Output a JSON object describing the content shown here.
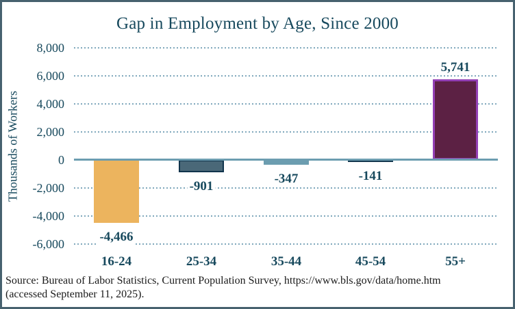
{
  "title": "Gap in Employment by Age, Since 2000",
  "source": {
    "lines": [
      "Source: Bureau of Labor Statistics, Current Population Survey, https://www.bls.gov/data/home.htm",
      "(accessed September 11, 2025)."
    ]
  },
  "chart_data": {
    "type": "bar",
    "title": "Gap in Employment by Age, Since 2000",
    "categories": [
      "16-24",
      "25-34",
      "35-44",
      "45-54",
      "55+"
    ],
    "values": [
      -4466,
      -901,
      -347,
      -141,
      5741
    ],
    "data_labels": [
      "-4,466",
      "-901",
      "-347",
      "-141",
      "5,741"
    ],
    "series": [
      {
        "name": "Gap in employment by age since 2000",
        "values": [
          -4466,
          -901,
          -347,
          -141,
          5741
        ]
      }
    ],
    "xlabel": "",
    "ylabel": "Thousands of Workers",
    "ylim": [
      -6000,
      8000
    ],
    "yticks": [
      8000,
      6000,
      4000,
      2000,
      0,
      -2000,
      -4000,
      -6000
    ],
    "ytick_labels": [
      "8,000",
      "6,000",
      "4,000",
      "2,000",
      "0",
      "-2,000",
      "-4,000",
      "-6,000"
    ],
    "grid": "horizontal-dotted",
    "legend": "none",
    "bar_styles": [
      {
        "fill": "#ECB45E",
        "border": null,
        "border_width": 0
      },
      {
        "fill": "#4A6878",
        "border": "#10344C",
        "border_width": 2
      },
      {
        "fill": "#6C9DB0",
        "border": null,
        "border_width": 0
      },
      {
        "fill": "#14374F",
        "border": null,
        "border_width": 0
      },
      {
        "fill": "#5C2144",
        "border": "#9340B5",
        "border_width": 3
      }
    ],
    "colors": {
      "text": "#17495D",
      "grid": "#7FA8BC",
      "zero_line": "#6C9DB0",
      "frame_border": "#47626F",
      "source_text": "#1A1A1A",
      "background": "#FFFFFF"
    }
  }
}
